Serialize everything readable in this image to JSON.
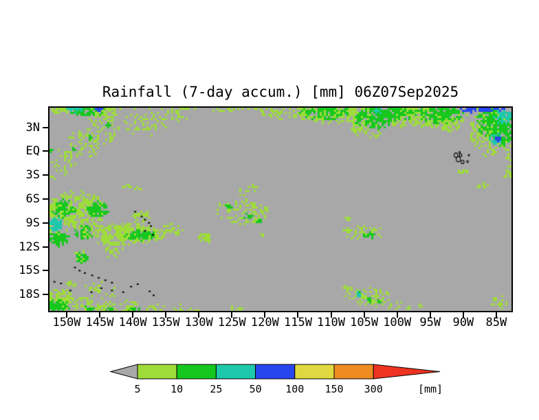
{
  "chart_data": {
    "type": "heatmap",
    "title": "Rainfall (7-day accum.) [mm] 06Z07Sep2025",
    "x_tick_labels": [
      "150W",
      "145W",
      "140W",
      "135W",
      "130W",
      "125W",
      "120W",
      "115W",
      "110W",
      "105W",
      "100W",
      "95W",
      "90W",
      "85W"
    ],
    "x_tick_lons": [
      -150,
      -145,
      -140,
      -135,
      -130,
      -125,
      -120,
      -115,
      -110,
      -105,
      -100,
      -95,
      -90,
      -85
    ],
    "y_tick_labels": [
      "3N",
      "EQ",
      "3S",
      "6S",
      "9S",
      "12S",
      "15S",
      "18S"
    ],
    "y_tick_lats": [
      3,
      0,
      -3,
      -6,
      -9,
      -12,
      -15,
      -18
    ],
    "lon_domain": [
      -152.6,
      -82.7
    ],
    "lat_domain": [
      5.46,
      -20.05
    ],
    "grid": false,
    "background_color": "#a8a8a8",
    "colorbar": {
      "unit_label": "[mm]",
      "tick_labels": [
        "5",
        "10",
        "25",
        "50",
        "100",
        "150",
        "300"
      ],
      "left_arrow": {
        "color": "#a8a8a8",
        "meaning": "< 5"
      },
      "right_arrow": {
        "color": "#ee3322",
        "meaning": "> 300"
      },
      "segments": [
        {
          "range": "5-10",
          "color": "#9edc3a"
        },
        {
          "range": "10-25",
          "color": "#16c81e"
        },
        {
          "range": "25-50",
          "color": "#1ec8aa"
        },
        {
          "range": "50-100",
          "color": "#2846f0"
        },
        {
          "range": "100-150",
          "color": "#e0d840"
        },
        {
          "range": "150-300",
          "color": "#ee8c22"
        }
      ]
    },
    "level_colors": {
      "1": "#9edc3a",
      "2": "#16c81e",
      "3": "#1ec8aa",
      "4": "#2846f0",
      "5": "#e0d840",
      "6": "#ee8c22",
      "7": "#ee3322"
    },
    "rain_blobs_format": [
      "lon_deg",
      "lat_deg",
      "rx_deg",
      "ry_deg",
      "level",
      "density"
    ],
    "rain_blobs": [
      [
        -118.0,
        5.35,
        34.0,
        0.3,
        1,
        0.3
      ],
      [
        -109.0,
        4.8,
        7.0,
        1.4,
        1,
        0.7
      ],
      [
        -117.0,
        5.0,
        4.0,
        1.0,
        1,
        0.4
      ],
      [
        -96.0,
        4.6,
        7.0,
        1.6,
        1,
        0.75
      ],
      [
        -104.5,
        2.8,
        2.5,
        1.3,
        1,
        0.55
      ],
      [
        -99.0,
        3.6,
        2.0,
        0.8,
        1,
        0.45
      ],
      [
        -92.5,
        3.4,
        2.5,
        1.0,
        1,
        0.5
      ],
      [
        -86.0,
        2.5,
        3.0,
        3.2,
        1,
        0.55
      ],
      [
        -83.0,
        -0.2,
        0.7,
        1.2,
        1,
        0.6
      ],
      [
        -83.2,
        -2.8,
        0.7,
        1.2,
        1,
        0.5
      ],
      [
        -87.2,
        -4.2,
        1.0,
        0.5,
        1,
        0.6
      ],
      [
        -89.9,
        -2.55,
        0.9,
        0.35,
        1,
        0.85
      ],
      [
        -144.6,
        4.9,
        2.4,
        0.9,
        1,
        0.65
      ],
      [
        -150.6,
        5.2,
        1.6,
        0.6,
        1,
        0.75
      ],
      [
        -147.5,
        0.8,
        2.6,
        2.2,
        1,
        0.28
      ],
      [
        -144.5,
        2.8,
        2.6,
        2.0,
        1,
        0.28
      ],
      [
        -150.5,
        -1.2,
        2.0,
        1.9,
        1,
        0.25
      ],
      [
        -152.4,
        -3.5,
        0.6,
        0.7,
        1,
        0.7
      ],
      [
        -138.0,
        3.5,
        3.5,
        1.8,
        1,
        0.25
      ],
      [
        -133.5,
        4.6,
        2.0,
        1.2,
        1,
        0.4
      ],
      [
        -141.0,
        -4.4,
        0.9,
        0.3,
        1,
        0.85
      ],
      [
        -138.9,
        -4.7,
        0.9,
        0.3,
        1,
        0.85
      ],
      [
        -123.5,
        -7.6,
        4.5,
        1.6,
        1,
        0.4
      ],
      [
        -122.5,
        -5.0,
        1.5,
        1.0,
        1,
        0.35
      ],
      [
        -129.2,
        -10.7,
        1.2,
        0.5,
        1,
        0.9
      ],
      [
        -129.0,
        -11.35,
        0.9,
        0.35,
        1,
        0.85
      ],
      [
        -120.6,
        -10.6,
        0.5,
        0.3,
        1,
        0.9
      ],
      [
        -107.5,
        -8.5,
        0.5,
        0.3,
        1,
        0.9
      ],
      [
        -148.5,
        -7.5,
        4.5,
        2.6,
        1,
        0.75
      ],
      [
        -152.0,
        -8.5,
        1.2,
        2.8,
        1,
        0.75
      ],
      [
        -141.5,
        -10.4,
        6.5,
        1.4,
        1,
        0.75
      ],
      [
        -143.3,
        -12.3,
        1.9,
        1.1,
        1,
        0.5
      ],
      [
        -147.9,
        -13.3,
        1.3,
        1.0,
        1,
        0.65
      ],
      [
        -138.6,
        -8.4,
        1.6,
        1.2,
        1,
        0.45
      ],
      [
        -134.0,
        -9.8,
        1.6,
        0.8,
        1,
        0.55
      ],
      [
        -151.0,
        -18.8,
        2.2,
        1.6,
        1,
        0.75
      ],
      [
        -147.5,
        -19.3,
        1.6,
        1.1,
        1,
        0.6
      ],
      [
        -144.0,
        -19.8,
        1.8,
        0.9,
        1,
        0.6
      ],
      [
        -140.5,
        -19.5,
        1.5,
        0.9,
        1,
        0.5
      ],
      [
        -136.5,
        -19.8,
        1.5,
        0.8,
        1,
        0.5
      ],
      [
        -133.0,
        -19.9,
        1.2,
        0.7,
        1,
        0.5
      ],
      [
        -130.8,
        -19.9,
        1.0,
        0.5,
        1,
        0.5
      ],
      [
        -124.5,
        -19.9,
        1.2,
        0.5,
        1,
        0.45
      ],
      [
        -149.3,
        -16.7,
        0.8,
        0.5,
        1,
        0.7
      ],
      [
        -145.0,
        -17.5,
        3.0,
        1.2,
        1,
        0.2
      ],
      [
        -105.2,
        -10.2,
        3.2,
        1.0,
        1,
        0.6
      ],
      [
        -104.5,
        -18.3,
        3.5,
        1.3,
        1,
        0.35
      ],
      [
        -100.8,
        -19.2,
        1.5,
        0.7,
        1,
        0.4
      ],
      [
        -98.5,
        -19.5,
        1.2,
        0.5,
        1,
        0.4
      ],
      [
        -96.3,
        -19.3,
        0.5,
        0.3,
        1,
        0.8
      ],
      [
        -107.6,
        -17.2,
        0.8,
        0.5,
        1,
        0.6
      ],
      [
        -84.5,
        -18.9,
        1.3,
        0.9,
        1,
        0.5
      ],
      [
        -111.0,
        5.0,
        4.0,
        1.2,
        2,
        0.7
      ],
      [
        -103.5,
        4.3,
        3.2,
        1.6,
        2,
        0.75
      ],
      [
        -101.0,
        4.9,
        4.0,
        1.3,
        2,
        0.7
      ],
      [
        -93.5,
        4.8,
        3.5,
        1.4,
        2,
        0.8
      ],
      [
        -85.3,
        3.6,
        2.8,
        2.0,
        2,
        0.8
      ],
      [
        -84.0,
        2.0,
        1.6,
        1.5,
        2,
        0.7
      ],
      [
        -146.8,
        5.1,
        3.0,
        0.8,
        2,
        0.85
      ],
      [
        -146.4,
        1.6,
        0.45,
        0.4,
        2,
        0.95
      ],
      [
        -143.6,
        3.3,
        0.5,
        0.4,
        2,
        0.95
      ],
      [
        -148.9,
        0.3,
        0.4,
        0.35,
        2,
        0.95
      ],
      [
        -152.5,
        0.1,
        0.4,
        0.3,
        2,
        0.95
      ],
      [
        -125.5,
        -6.9,
        0.6,
        0.4,
        2,
        0.9
      ],
      [
        -122.5,
        -8.2,
        0.8,
        0.45,
        2,
        0.9
      ],
      [
        -121.0,
        -8.8,
        0.45,
        0.4,
        2,
        0.9
      ],
      [
        -150.4,
        -7.3,
        1.8,
        1.3,
        2,
        0.75
      ],
      [
        -145.3,
        -7.3,
        1.7,
        1.0,
        2,
        0.85
      ],
      [
        -151.3,
        -10.9,
        1.7,
        1.1,
        2,
        0.85
      ],
      [
        -147.5,
        -10.2,
        1.5,
        1.0,
        2,
        0.65
      ],
      [
        -139.0,
        -10.5,
        2.4,
        0.75,
        2,
        0.92
      ],
      [
        -147.7,
        -13.4,
        0.9,
        0.7,
        2,
        0.85
      ],
      [
        -151.5,
        -19.6,
        2.0,
        1.0,
        2,
        0.7
      ],
      [
        -146.8,
        -19.9,
        1.0,
        0.5,
        2,
        0.8
      ],
      [
        -143.5,
        -20.0,
        0.8,
        0.45,
        2,
        0.8
      ],
      [
        -139.8,
        -20.0,
        0.9,
        0.5,
        2,
        0.7
      ],
      [
        -104.3,
        -10.6,
        1.0,
        0.45,
        2,
        0.85
      ],
      [
        -105.6,
        -18.0,
        0.5,
        0.4,
        2,
        0.9
      ],
      [
        -104.1,
        -18.7,
        0.5,
        0.35,
        2,
        0.9
      ],
      [
        -102.6,
        -18.9,
        0.4,
        0.3,
        2,
        0.9
      ],
      [
        -83.9,
        4.3,
        1.6,
        1.0,
        3,
        0.85
      ],
      [
        -102.8,
        5.2,
        1.0,
        0.5,
        3,
        0.8
      ],
      [
        -85.0,
        1.5,
        1.1,
        0.8,
        3,
        0.9
      ],
      [
        -148.8,
        5.3,
        1.2,
        0.5,
        3,
        0.9
      ],
      [
        -151.7,
        -9.2,
        1.1,
        0.95,
        3,
        0.95
      ],
      [
        -105.8,
        -18.0,
        0.4,
        0.35,
        3,
        0.95
      ],
      [
        -89.0,
        5.3,
        1.6,
        0.5,
        4,
        0.9
      ],
      [
        -86.0,
        5.35,
        2.6,
        0.45,
        4,
        0.85
      ],
      [
        -84.7,
        1.45,
        0.55,
        0.4,
        4,
        0.95
      ],
      [
        -145.3,
        5.4,
        1.0,
        0.35,
        4,
        0.9
      ],
      [
        -84.6,
        5.45,
        0.45,
        0.15,
        5,
        0.95
      ],
      [
        -83.3,
        5.45,
        0.3,
        0.15,
        6,
        0.95
      ]
    ],
    "islands": {
      "galapagos_outlines": [
        [
          -91.1,
          -0.5,
          0.28
        ],
        [
          -90.75,
          -1.0,
          0.32
        ],
        [
          -90.4,
          -0.5,
          0.18
        ],
        [
          -90.1,
          -1.35,
          0.22
        ],
        [
          -89.35,
          -1.3,
          0.13
        ],
        [
          -90.55,
          -0.15,
          0.12
        ],
        [
          -89.15,
          -0.5,
          0.1
        ]
      ],
      "island_marks": [
        [
          -139.7,
          -7.6
        ],
        [
          -138.7,
          -8.2
        ],
        [
          -138.2,
          -8.6
        ],
        [
          -137.6,
          -9.0
        ],
        [
          -137.3,
          -9.4
        ],
        [
          -138.2,
          -10.0
        ],
        [
          -137.0,
          -10.5
        ],
        [
          -148.8,
          -14.6
        ],
        [
          -148.1,
          -15.0
        ],
        [
          -147.3,
          -15.3
        ],
        [
          -146.2,
          -15.6
        ],
        [
          -145.2,
          -15.9
        ],
        [
          -144.2,
          -16.2
        ],
        [
          -143.2,
          -16.5
        ],
        [
          -144.8,
          -17.2
        ],
        [
          -143.2,
          -17.5
        ],
        [
          -141.5,
          -17.7
        ],
        [
          -140.3,
          -17.0
        ],
        [
          -139.3,
          -16.7
        ],
        [
          -146.3,
          -17.7
        ],
        [
          -151.9,
          -16.4
        ],
        [
          -150.9,
          -16.6
        ],
        [
          -149.5,
          -17.5
        ],
        [
          -137.5,
          -17.6
        ],
        [
          -136.9,
          -18.1
        ]
      ]
    }
  }
}
